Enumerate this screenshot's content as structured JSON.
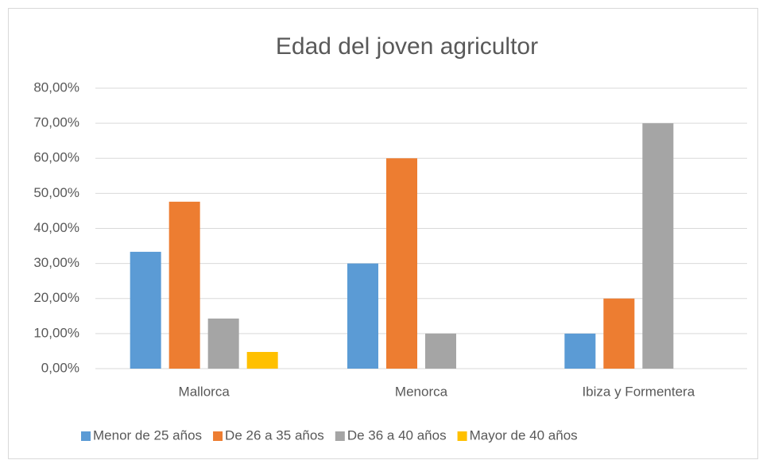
{
  "chart_data": {
    "type": "bar",
    "title": "Edad del joven agricultor",
    "categories": [
      "Mallorca",
      "Menorca",
      "Ibiza y Formentera"
    ],
    "series": [
      {
        "name": "Menor de 25 años",
        "color": "#5b9bd5",
        "values": [
          33.33,
          30,
          10
        ]
      },
      {
        "name": "De 26 a 35 años",
        "color": "#ed7d31",
        "values": [
          47.62,
          60,
          20
        ]
      },
      {
        "name": "De 36 a 40 años",
        "color": "#a5a5a5",
        "values": [
          14.29,
          10,
          70
        ]
      },
      {
        "name": "Mayor de 40 años",
        "color": "#ffc000",
        "values": [
          4.76,
          0,
          0
        ]
      }
    ],
    "ylim": [
      0,
      80
    ],
    "yticks": [
      {
        "value": 0,
        "label": "0,00%"
      },
      {
        "value": 10,
        "label": "10,00%"
      },
      {
        "value": 20,
        "label": "20,00%"
      },
      {
        "value": 30,
        "label": "30,00%"
      },
      {
        "value": 40,
        "label": "40,00%"
      },
      {
        "value": 50,
        "label": "50,00%"
      },
      {
        "value": 60,
        "label": "60,00%"
      },
      {
        "value": 70,
        "label": "70,00%"
      },
      {
        "value": 80,
        "label": "80,00%"
      }
    ],
    "grid": true,
    "legend": "bottom"
  }
}
